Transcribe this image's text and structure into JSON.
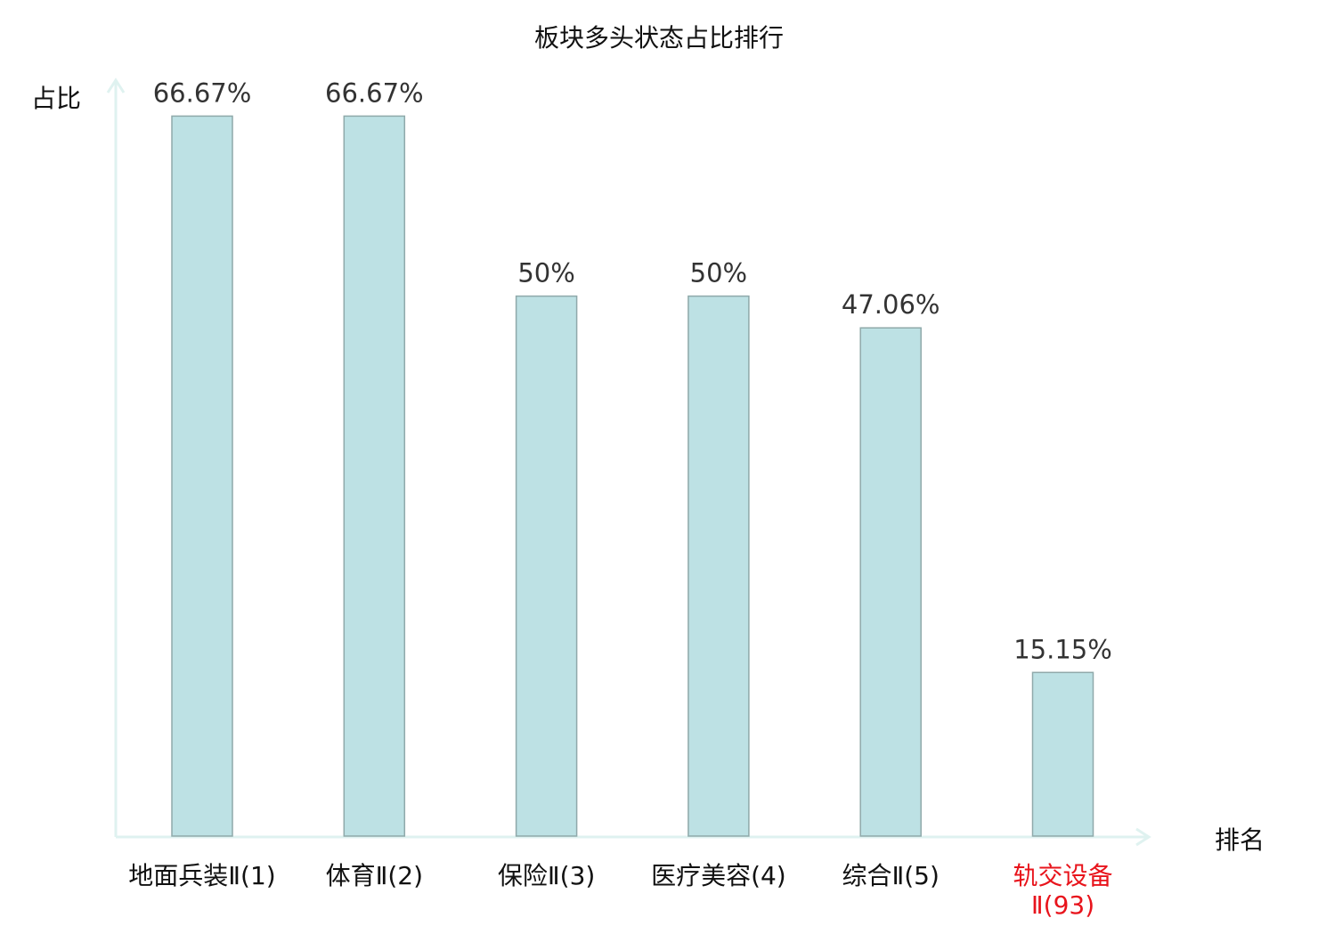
{
  "chart_data": {
    "type": "bar",
    "title": "板块多头状态占比排行",
    "xlabel": "排名",
    "ylabel": "占比",
    "categories": [
      "地面兵装Ⅱ(1)",
      "体育Ⅱ(2)",
      "保险Ⅱ(3)",
      "医疗美容(4)",
      "综合Ⅱ(5)",
      "轨交设备Ⅱ(93)"
    ],
    "values": [
      66.67,
      66.67,
      50,
      50,
      47.06,
      15.15
    ],
    "data_labels": [
      "66.67%",
      "66.67%",
      "50%",
      "50%",
      "47.06%",
      "15.15%"
    ],
    "highlight_index": 5,
    "ylim": [
      0,
      70
    ],
    "grid": false,
    "legend": "none",
    "colors": {
      "bar_fill": "#bde1e4",
      "bar_stroke": "#8fa9aa",
      "axis": "#dff2f0",
      "highlight_label": "#e8141c",
      "text": "#333333"
    }
  }
}
